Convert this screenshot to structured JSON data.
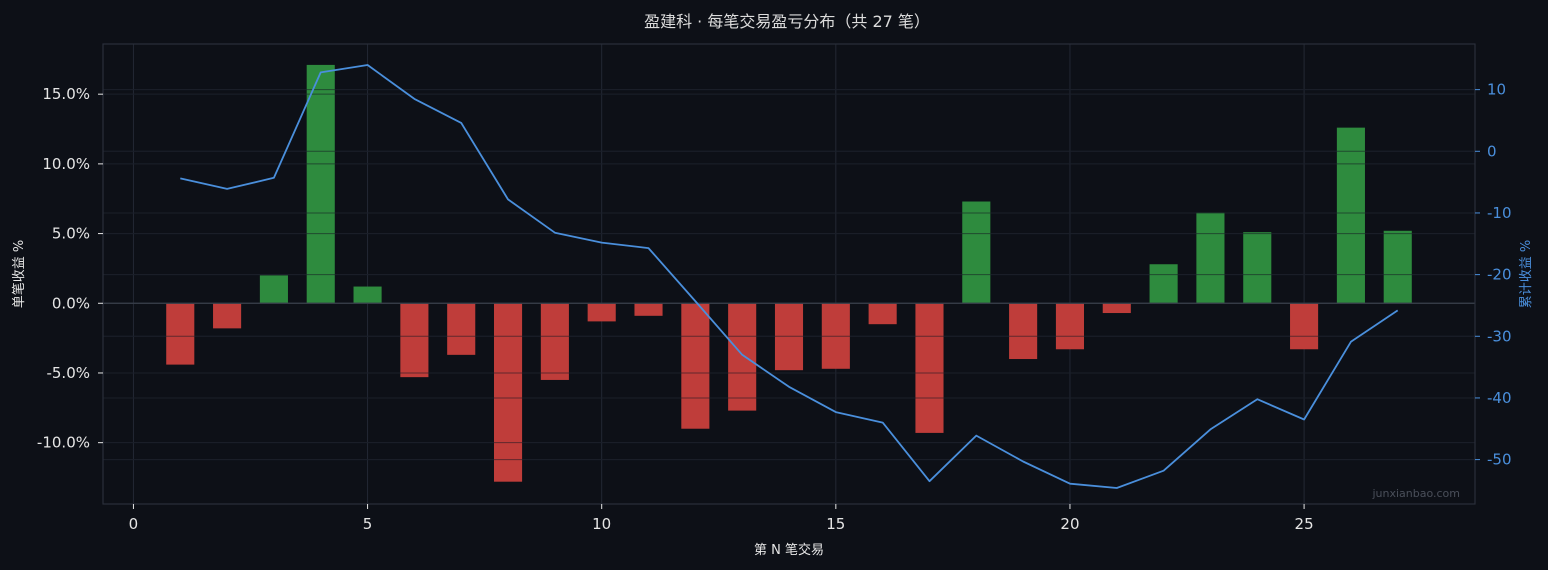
{
  "colors": {
    "background": "#0d1017",
    "plot_background": "#0d1017",
    "frame": "#2a2f3a",
    "grid": "#232834",
    "zero_line": "#3a404c",
    "text": "#e6e6e6",
    "title_text": "#dcdcdc",
    "right_axis": "#4a8fdc",
    "positive_bar": "#2e8b3e",
    "negative_bar": "#bf3d3a",
    "cumulative_line": "#4a8fdc",
    "watermark": "#4a4f5a"
  },
  "chart_data": {
    "type": "bar",
    "title": "盈建科 · 每笔交易盈亏分布（共 27 笔）",
    "xlabel": "第 N 笔交易",
    "ylabel": "单笔收益 %",
    "ylabel_right": "累计收益 %",
    "watermark": "junxianbao.com",
    "grid": true,
    "xlim": [
      -0.65,
      28.65
    ],
    "ylim": [
      -14.4,
      18.6
    ],
    "ylim_right": [
      -57.2,
      17.4
    ],
    "x_ticks": [
      0,
      5,
      10,
      15,
      20,
      25
    ],
    "x_tick_labels": [
      "0",
      "5",
      "10",
      "15",
      "20",
      "25"
    ],
    "y_ticks": [
      -10,
      -5,
      0,
      5,
      10,
      15
    ],
    "y_tick_labels": [
      "-10.0%",
      "-5.0%",
      "0.0%",
      "5.0%",
      "10.0%",
      "15.0%"
    ],
    "y_right_ticks": [
      -50,
      -40,
      -30,
      -20,
      -10,
      0,
      10
    ],
    "y_right_tick_labels": [
      "-50",
      "-40",
      "-30",
      "-20",
      "-10",
      "0",
      "10"
    ],
    "x": [
      1,
      2,
      3,
      4,
      5,
      6,
      7,
      8,
      9,
      10,
      11,
      12,
      13,
      14,
      15,
      16,
      17,
      18,
      19,
      20,
      21,
      22,
      23,
      24,
      25,
      26,
      27
    ],
    "series": [
      {
        "type": "bar",
        "values": [
          -4.4,
          -1.8,
          2.0,
          17.1,
          1.2,
          -5.3,
          -3.7,
          -12.8,
          -5.5,
          -1.3,
          -0.9,
          -9.0,
          -7.7,
          -4.8,
          -4.7,
          -1.5,
          -9.3,
          7.3,
          -4.0,
          -3.3,
          -0.7,
          2.8,
          6.5,
          5.1,
          -3.3,
          12.6,
          5.2
        ]
      },
      {
        "type": "line",
        "axis": "right",
        "values": [
          -4.4,
          -6.1,
          -4.3,
          12.8,
          14.0,
          8.5,
          4.6,
          -7.8,
          -13.2,
          -14.8,
          -15.7,
          -24.3,
          -33.0,
          -38.2,
          -42.3,
          -44.0,
          -53.5,
          -46.1,
          -50.3,
          -53.9,
          -54.6,
          -51.8,
          -45.1,
          -40.2,
          -43.5,
          -30.9,
          -25.8
        ]
      }
    ]
  }
}
